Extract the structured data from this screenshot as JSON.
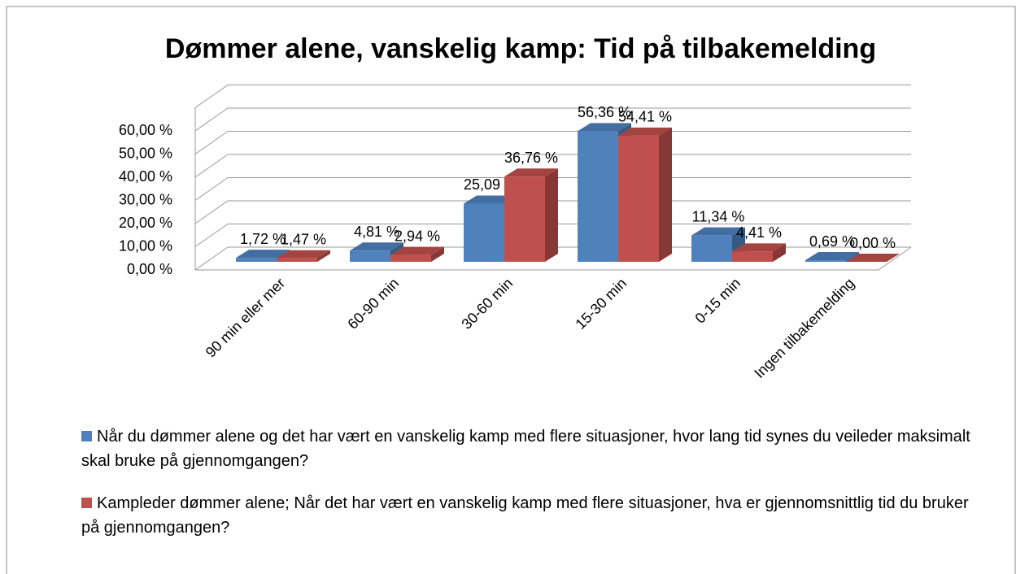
{
  "chart_data": {
    "type": "bar3d",
    "title": "Dømmer alene, vanskelig kamp: Tid på tilbakemelding",
    "categories": [
      "90 min eller mer",
      "60-90 min",
      "30-60 min",
      "15-30 min",
      "0-15 min",
      "Ingen tilbakemelding"
    ],
    "series": [
      {
        "name": "Når du dømmer alene og det har vært en vanskelig kamp med flere situasjoner, hvor lang tid synes du veileder maksimalt skal bruke på gjennomgangen?",
        "color": "#4f81bd",
        "values": [
          1.72,
          4.81,
          25.09,
          56.36,
          11.34,
          0.69
        ],
        "value_labels": [
          "1,72 %",
          "4,81 %",
          "25,09 %",
          "56,36 %",
          "11,34 %",
          "0,69 %"
        ]
      },
      {
        "name": "Kampleder dømmer alene; Når det har vært en vanskelig kamp med flere situasjoner, hva er gjennomsnittlig tid du bruker på gjennomgangen?",
        "color": "#c0504d",
        "values": [
          1.47,
          2.94,
          36.76,
          54.41,
          4.41,
          0.0
        ],
        "value_labels": [
          "1,47 %",
          "2,94 %",
          "36,76 %",
          "54,41 %",
          "4,41 %",
          "0,00 %"
        ]
      }
    ],
    "ylim": [
      0,
      70
    ],
    "yticks": [
      {
        "value": 0,
        "label": "0,00 %"
      },
      {
        "value": 10,
        "label": "10,00 %"
      },
      {
        "value": 20,
        "label": "20,00 %"
      },
      {
        "value": 30,
        "label": "30,00 %"
      },
      {
        "value": 40,
        "label": "40,00 %"
      },
      {
        "value": 50,
        "label": "50,00 %"
      },
      {
        "value": 60,
        "label": "60,00 %"
      }
    ],
    "grid": true,
    "legend": "bottom"
  }
}
